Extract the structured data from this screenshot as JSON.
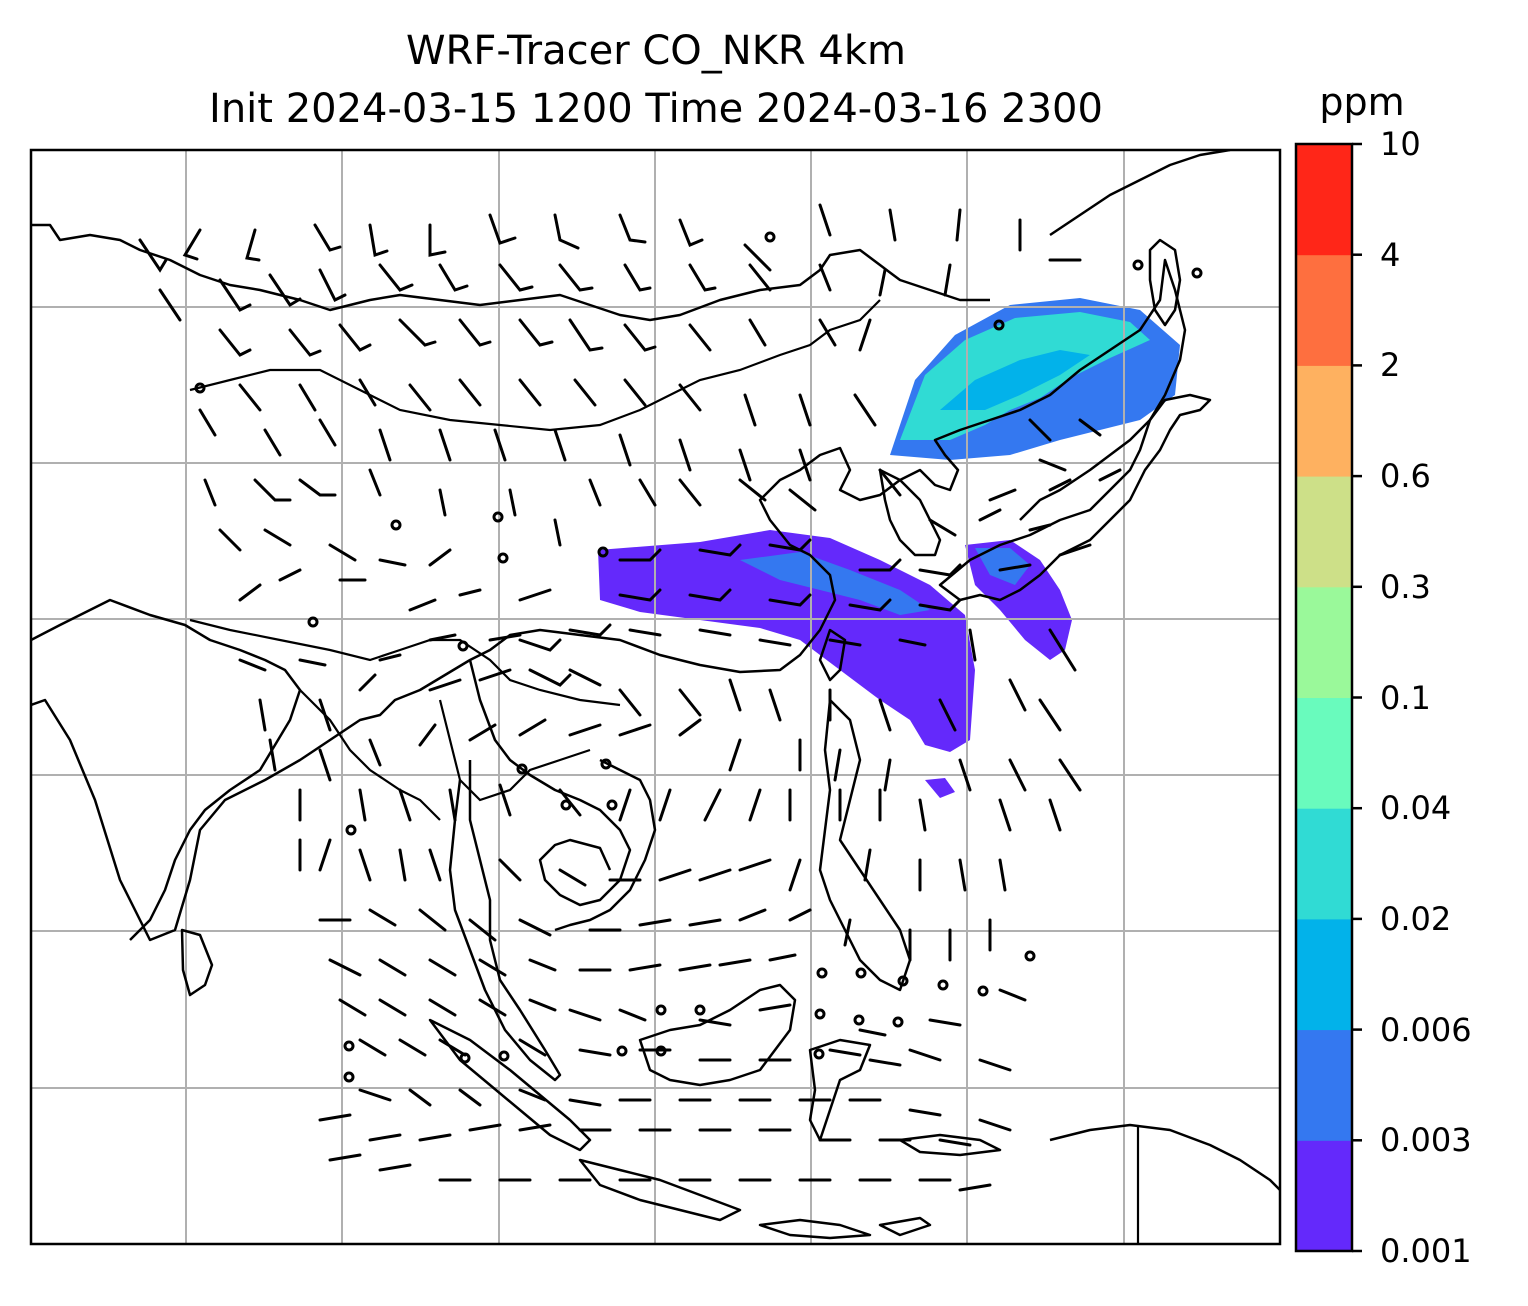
{
  "title": {
    "line1": "WRF-Tracer CO_NKR 4km",
    "line2": "Init 2024-03-15 1200 Time 2024-03-16 2300"
  },
  "colorbar": {
    "unit": "ppm",
    "levels": [
      "0.001",
      "0.003",
      "0.006",
      "0.02",
      "0.04",
      "0.1",
      "0.3",
      "0.6",
      "2",
      "4",
      "10"
    ],
    "colors": [
      "#6429fb",
      "#3478f0",
      "#02b2ea",
      "#30dbd4",
      "#69fbbd",
      "#9af99a",
      "#cde088",
      "#feb160",
      "#fe6f3f",
      "#ff2618"
    ]
  },
  "map": {
    "grid": "on",
    "features": [
      "coastlines",
      "country-borders",
      "wind-barbs",
      "tracer-concentration"
    ],
    "plume_levels": [
      "0.001",
      "0.003",
      "0.006",
      "0.02"
    ]
  }
}
